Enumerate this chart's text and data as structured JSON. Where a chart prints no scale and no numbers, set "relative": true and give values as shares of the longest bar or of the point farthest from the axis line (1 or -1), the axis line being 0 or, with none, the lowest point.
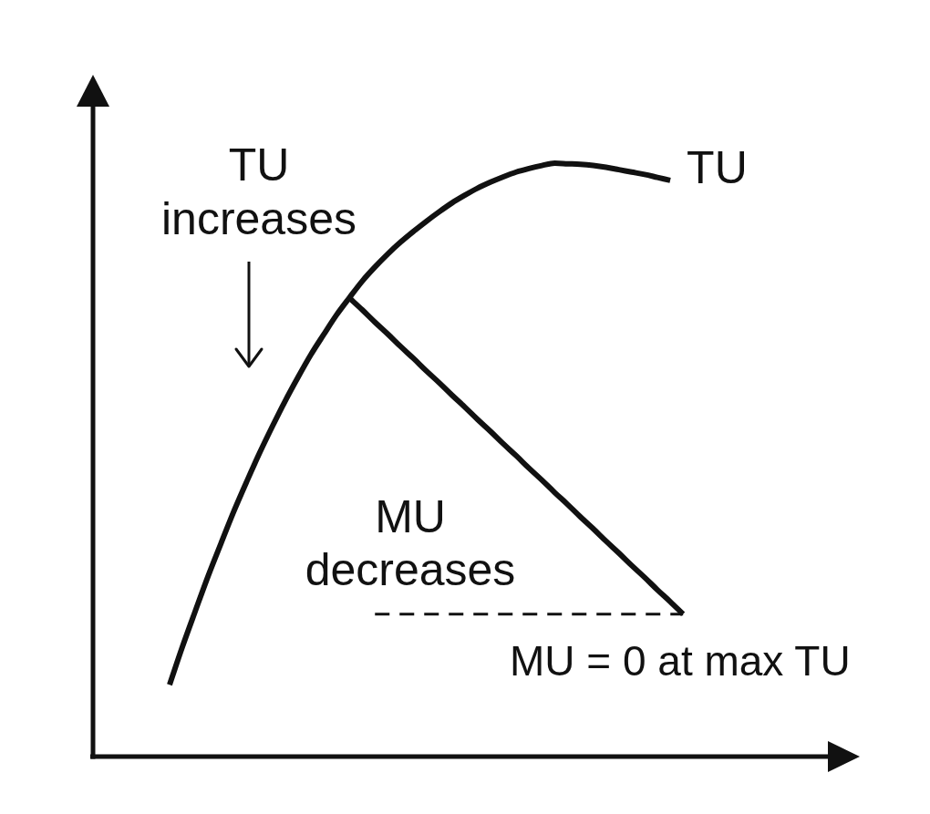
{
  "chart_data": {
    "type": "line",
    "relative": true,
    "categories": [
      null,
      null,
      null,
      null,
      null,
      null,
      null,
      null,
      null,
      null,
      null,
      null,
      null,
      null,
      null,
      null,
      null,
      null,
      null,
      null,
      null,
      null,
      null,
      null,
      null,
      null,
      null,
      null,
      null,
      null,
      null,
      null,
      null,
      null,
      null,
      null,
      null,
      null,
      null,
      null,
      null,
      null,
      null,
      null,
      null,
      null,
      null,
      null,
      null,
      null,
      null,
      null,
      null,
      null,
      null,
      null,
      null,
      null,
      null,
      null
    ],
    "series": [
      {
        "name": "TU",
        "color": "#111111",
        "values": [
          null,
          null,
          null,
          null,
          null,
          null,
          0.121,
          0.185,
          0.245,
          0.304,
          0.359,
          0.413,
          0.463,
          0.511,
          0.556,
          0.599,
          0.639,
          0.677,
          0.711,
          0.744,
          0.773,
          0.801,
          0.825,
          0.847,
          0.867,
          0.885,
          0.902,
          0.918,
          0.933,
          0.946,
          0.958,
          0.968,
          0.977,
          0.985,
          0.991,
          0.996,
          1,
          0.999,
          0.998,
          0.996,
          0.993,
          0.989,
          0.985,
          0.981,
          0.976,
          0.971,
          null,
          null,
          null,
          null,
          null,
          null,
          null,
          null,
          null,
          null,
          null,
          null,
          null,
          null
        ]
      },
      {
        "color": "#111111",
        "values": [
          null,
          null,
          null,
          null,
          null,
          null,
          null,
          null,
          null,
          null,
          null,
          null,
          null,
          null,
          null,
          null,
          null,
          null,
          null,
          null,
          0.773,
          0.753,
          0.732,
          0.712,
          0.691,
          0.671,
          0.65,
          0.63,
          0.609,
          0.589,
          0.568,
          0.548,
          0.527,
          0.507,
          0.486,
          0.466,
          0.445,
          0.425,
          0.404,
          0.384,
          0.363,
          0.343,
          0.322,
          0.302,
          0.281,
          0.261,
          0.24,
          null,
          null,
          null,
          null,
          null,
          null,
          null,
          null,
          null,
          null,
          null,
          null,
          null
        ]
      },
      {
        "color": "#111111",
        "line_style": "dashed",
        "values": [
          null,
          null,
          null,
          null,
          null,
          null,
          null,
          null,
          null,
          null,
          null,
          null,
          null,
          null,
          null,
          null,
          null,
          null,
          null,
          null,
          null,
          null,
          0.24,
          0.24,
          0.24,
          0.24,
          0.24,
          0.24,
          0.24,
          0.24,
          0.24,
          0.24,
          0.24,
          0.24,
          0.24,
          0.24,
          0.24,
          0.24,
          0.24,
          0.24,
          0.24,
          0.24,
          0.24,
          0.24,
          0.24,
          0.24,
          0.24,
          null,
          null,
          null,
          null,
          null,
          null,
          null,
          null,
          null,
          null,
          null,
          null,
          null
        ]
      }
    ],
    "annotations": [
      "TU increases",
      "MU decreases",
      "MU = 0 at max TU"
    ]
  }
}
